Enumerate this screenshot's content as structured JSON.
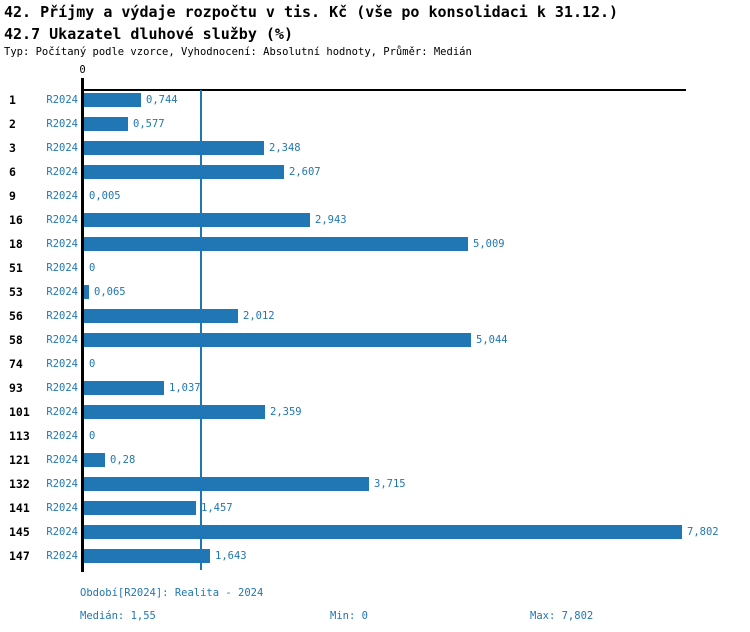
{
  "header": {
    "title": "42. Příjmy a výdaje rozpočtu v tis. Kč (vše po konsolidaci k 31.12.)",
    "subtitle": "42.7 Ukazatel dluhové služby (%)",
    "meta_line": "Typ: Počítaný podle vzorce, Vyhodnocení: Absolutní hodnoty, Průměr: Medián"
  },
  "colors": {
    "bar_blue": "#2077b4",
    "axis_black": "#000000",
    "label_blue": "#2077b4"
  },
  "chart_data": {
    "type": "bar",
    "orientation": "horizontal",
    "title": "42.7 Ukazatel dluhové služby (%)",
    "series_label": "R2024",
    "categories": [
      "1",
      "2",
      "3",
      "6",
      "9",
      "16",
      "18",
      "51",
      "53",
      "56",
      "58",
      "74",
      "93",
      "101",
      "113",
      "121",
      "132",
      "141",
      "145",
      "147"
    ],
    "values": [
      0.744,
      0.577,
      2.348,
      2.607,
      0.005,
      2.943,
      5.009,
      0,
      0.065,
      2.012,
      5.044,
      0,
      1.037,
      2.359,
      0,
      0.28,
      3.715,
      1.457,
      7.802,
      1.643
    ],
    "value_labels": [
      "0,744",
      "0,577",
      "2,348",
      "2,607",
      "0,005",
      "2,943",
      "5,009",
      "0",
      "0,065",
      "2,012",
      "5,044",
      "0",
      "1,037",
      "2,359",
      "0",
      "0,28",
      "3,715",
      "1,457",
      "7,802",
      "1,643"
    ],
    "axis_tick_label": "0",
    "xlim": [
      0,
      7.85
    ],
    "median_value": 1.55,
    "median_line_shown": true,
    "grid": false,
    "legend_position": "none"
  },
  "footer": {
    "period": "Období[R2024]: Realita - 2024",
    "median": "Medián: 1,55",
    "min": "Min: 0",
    "max": "Max: 7,802"
  }
}
